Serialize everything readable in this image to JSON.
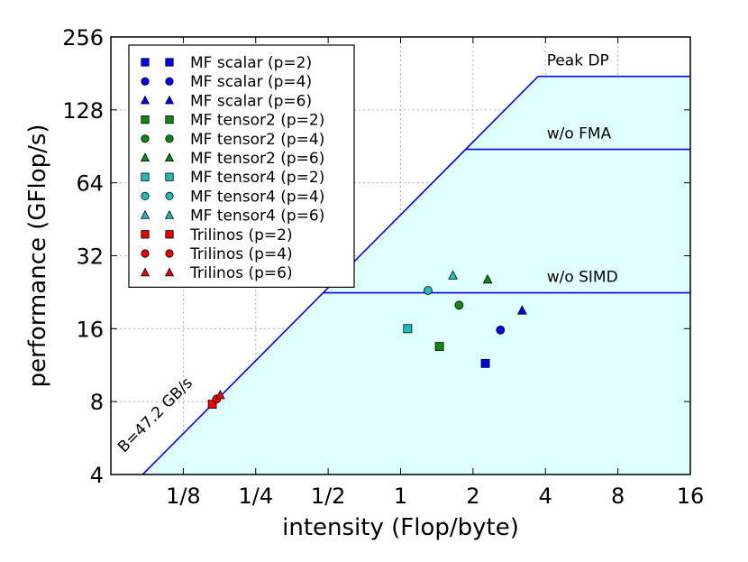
{
  "chart_data": {
    "type": "scatter",
    "xlabel": "intensity (Flop/byte)",
    "ylabel": "performance (GFlop/s)",
    "xscale": "log2",
    "yscale": "log2",
    "xlim": [
      0.0625,
      16
    ],
    "ylim": [
      4,
      256
    ],
    "grid": true,
    "x_ticks": [
      {
        "value": 0.125,
        "label": "1/8"
      },
      {
        "value": 0.25,
        "label": "1/4"
      },
      {
        "value": 0.5,
        "label": "1/2"
      },
      {
        "value": 1,
        "label": "1"
      },
      {
        "value": 2,
        "label": "2"
      },
      {
        "value": 4,
        "label": "4"
      },
      {
        "value": 8,
        "label": "8"
      },
      {
        "value": 16,
        "label": "16"
      }
    ],
    "y_ticks": [
      {
        "value": 4,
        "label": "4"
      },
      {
        "value": 8,
        "label": "8"
      },
      {
        "value": 16,
        "label": "16"
      },
      {
        "value": 32,
        "label": "32"
      },
      {
        "value": 64,
        "label": "64"
      },
      {
        "value": 128,
        "label": "128"
      },
      {
        "value": 256,
        "label": "256"
      }
    ],
    "roofline": {
      "bandwidth_label": "B=47.2 GB/s",
      "bandwidth": 47.2,
      "fill_color": "#e0ffff",
      "line_color": "#0000ee",
      "ceilings": [
        {
          "label": "Peak DP",
          "value": 176
        },
        {
          "label": "w/o FMA",
          "value": 88
        },
        {
          "label": "w/o SIMD",
          "value": 22.5
        }
      ]
    },
    "legend_position": "upper-left",
    "series": [
      {
        "name": "MF scalar (p=2)",
        "marker": "square",
        "color": "#0000ee",
        "x": 2.25,
        "y": 11.5
      },
      {
        "name": "MF scalar (p=4)",
        "marker": "circle",
        "color": "#0000ee",
        "x": 2.6,
        "y": 15.8
      },
      {
        "name": "MF scalar (p=6)",
        "marker": "triangle",
        "color": "#0000ee",
        "x": 3.2,
        "y": 19
      },
      {
        "name": "MF tensor2 (p=2)",
        "marker": "square",
        "color": "#118811",
        "x": 1.45,
        "y": 13.5
      },
      {
        "name": "MF tensor2 (p=4)",
        "marker": "circle",
        "color": "#118811",
        "x": 1.75,
        "y": 20
      },
      {
        "name": "MF tensor2 (p=6)",
        "marker": "triangle",
        "color": "#118811",
        "x": 2.3,
        "y": 25.5
      },
      {
        "name": "MF tensor4 (p=2)",
        "marker": "square",
        "color": "#22bbbb",
        "x": 1.07,
        "y": 16
      },
      {
        "name": "MF tensor4 (p=4)",
        "marker": "circle",
        "color": "#22bbbb",
        "x": 1.3,
        "y": 23
      },
      {
        "name": "MF tensor4 (p=6)",
        "marker": "triangle",
        "color": "#22bbbb",
        "x": 1.65,
        "y": 26.5
      },
      {
        "name": "Trilinos (p=2)",
        "marker": "square",
        "color": "#ee0000",
        "x": 0.165,
        "y": 7.8
      },
      {
        "name": "Trilinos (p=4)",
        "marker": "circle",
        "color": "#ee0000",
        "x": 0.172,
        "y": 8.2
      },
      {
        "name": "Trilinos (p=6)",
        "marker": "triangle",
        "color": "#ee0000",
        "x": 0.178,
        "y": 8.5
      }
    ]
  }
}
